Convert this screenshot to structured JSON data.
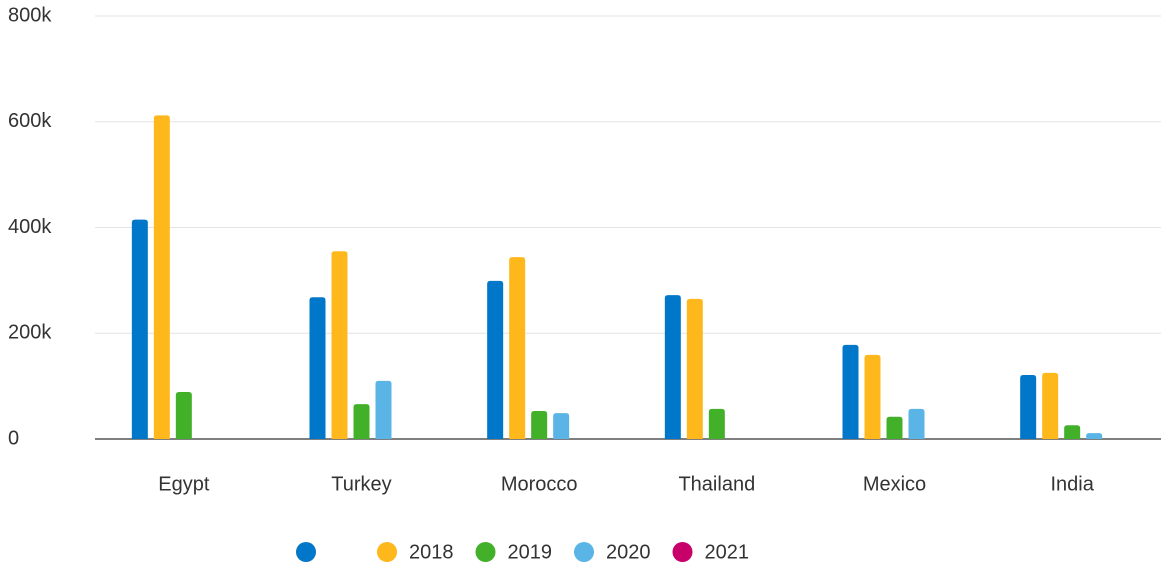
{
  "chart_data": {
    "type": "bar",
    "categories": [
      "Egypt",
      "Turkey",
      "Morocco",
      "Thailand",
      "Mexico",
      "India"
    ],
    "series": [
      {
        "name": null,
        "color": "#0077c8",
        "values": [
          415000,
          268000,
          299000,
          272000,
          178000,
          121000
        ]
      },
      {
        "name": "2018",
        "color": "#ffb81c",
        "values": [
          612000,
          355000,
          344000,
          265000,
          159000,
          125000
        ]
      },
      {
        "name": "2019",
        "color": "#43b02a",
        "values": [
          89000,
          66000,
          53000,
          57000,
          42000,
          26000
        ]
      },
      {
        "name": "2020",
        "color": "#5ab4e5",
        "values": [
          null,
          110000,
          49000,
          null,
          57000,
          11000
        ]
      },
      {
        "name": "2021",
        "color": "#c8006a",
        "values": [
          null,
          null,
          null,
          null,
          null,
          null
        ]
      }
    ],
    "ylim": [
      0,
      800000
    ],
    "yticks": [
      0,
      {
        "value": 200000,
        "label": "200k"
      },
      {
        "value": 400000,
        "label": "400k"
      },
      {
        "value": 600000,
        "label": "600k"
      },
      {
        "value": 800000,
        "label": "800k"
      }
    ],
    "grid": true,
    "legend": "bottom"
  }
}
